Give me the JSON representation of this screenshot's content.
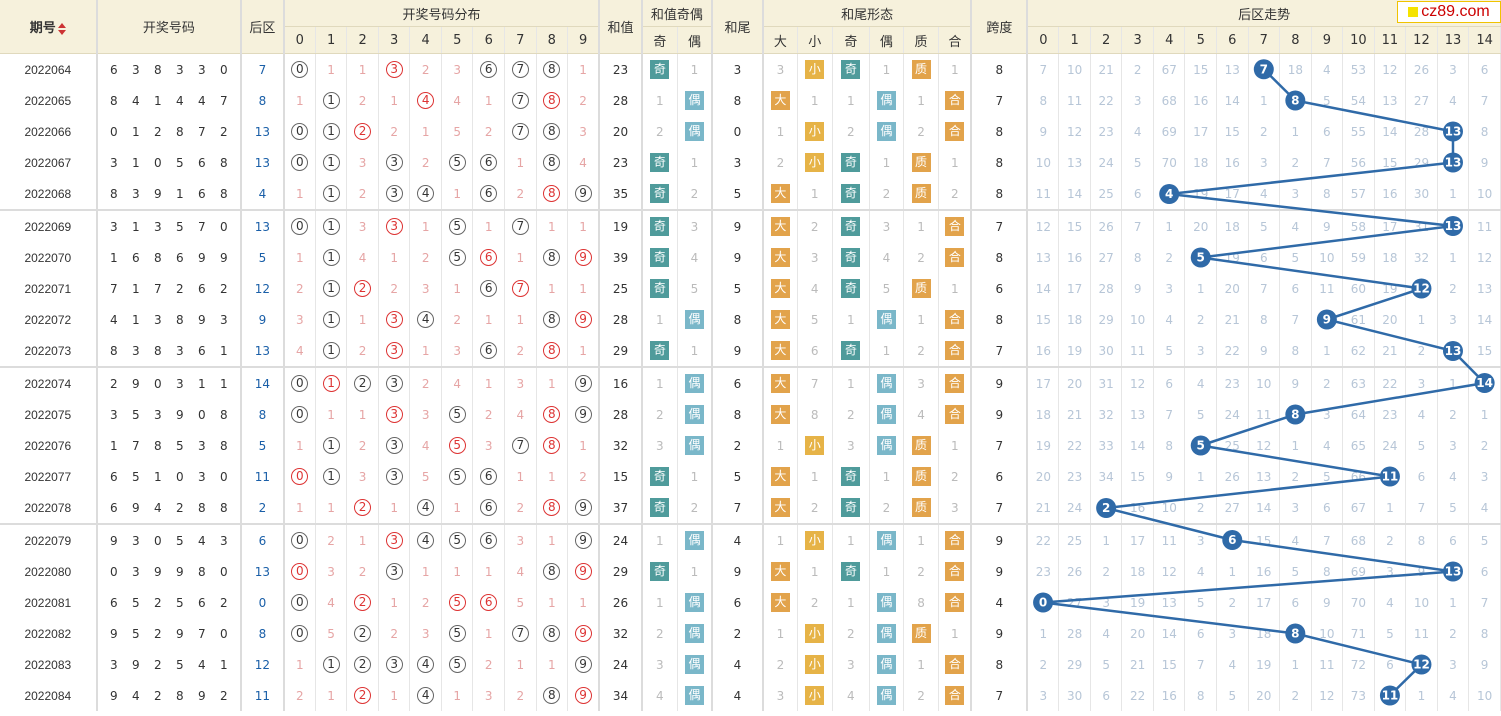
{
  "header": {
    "period": "期号",
    "draw_numbers": "开奖号码",
    "back": "后区",
    "distribution": "开奖号码分布",
    "sum": "和值",
    "sum_parity": "和值奇偶",
    "sum_tail": "和尾",
    "tail_shape": "和尾形态",
    "span": "跨度",
    "back_trend": "后区走势",
    "parity_odd": "奇",
    "parity_even": "偶",
    "big": "大",
    "small": "小",
    "odd": "奇",
    "even": "偶",
    "prime": "质",
    "composite": "合"
  },
  "logo": "cz89.com",
  "dist_cols": [
    "0",
    "1",
    "2",
    "3",
    "4",
    "5",
    "6",
    "7",
    "8",
    "9"
  ],
  "trend_cols": [
    "0",
    "1",
    "2",
    "3",
    "4",
    "5",
    "6",
    "7",
    "8",
    "9",
    "10",
    "11",
    "12",
    "13",
    "14"
  ],
  "rows": [
    {
      "period": "2022064",
      "nums": [
        "6",
        "3",
        "8",
        "3",
        "3",
        "0"
      ],
      "back": "7",
      "dist": [
        {
          "b": "0"
        },
        "1",
        "1",
        {
          "r": "3"
        },
        "2",
        "3",
        {
          "b": "6"
        },
        {
          "b": "7"
        },
        {
          "b": "8"
        },
        "1"
      ],
      "sum": "23",
      "sp": [
        "奇",
        "1"
      ],
      "tail": "3",
      "shape": [
        "3",
        "小",
        "奇",
        "1",
        "质",
        "1"
      ],
      "span": "8",
      "trend": [
        "7",
        "10",
        "21",
        "2",
        "67",
        "15",
        "13",
        "7",
        "18",
        "4",
        "53",
        "12",
        "26",
        "3",
        "6"
      ],
      "sel": 7
    },
    {
      "period": "2022065",
      "nums": [
        "8",
        "4",
        "1",
        "4",
        "4",
        "7"
      ],
      "back": "8",
      "dist": [
        "1",
        {
          "b": "1"
        },
        "2",
        "1",
        {
          "r": "4"
        },
        "4",
        "1",
        {
          "b": "7"
        },
        {
          "r": "8"
        },
        "2"
      ],
      "sum": "28",
      "sp": [
        "1",
        "偶"
      ],
      "tail": "8",
      "shape": [
        "大",
        "1",
        "1",
        "偶",
        "1",
        "合"
      ],
      "span": "7",
      "trend": [
        "8",
        "11",
        "22",
        "3",
        "68",
        "16",
        "14",
        "1",
        "8",
        "5",
        "54",
        "13",
        "27",
        "4",
        "7"
      ],
      "sel": 8
    },
    {
      "period": "2022066",
      "nums": [
        "0",
        "1",
        "2",
        "8",
        "7",
        "2"
      ],
      "back": "13",
      "dist": [
        {
          "b": "0"
        },
        {
          "b": "1"
        },
        {
          "r": "2"
        },
        "2",
        "1",
        "5",
        "2",
        {
          "b": "7"
        },
        {
          "b": "8"
        },
        "3"
      ],
      "sum": "20",
      "sp": [
        "2",
        "偶"
      ],
      "tail": "0",
      "shape": [
        "1",
        "小",
        "2",
        "偶",
        "2",
        "合"
      ],
      "span": "8",
      "trend": [
        "9",
        "12",
        "23",
        "4",
        "69",
        "17",
        "15",
        "2",
        "1",
        "6",
        "55",
        "14",
        "28",
        "13",
        "8"
      ],
      "sel": 13
    },
    {
      "period": "2022067",
      "nums": [
        "3",
        "1",
        "0",
        "5",
        "6",
        "8"
      ],
      "back": "13",
      "dist": [
        {
          "b": "0"
        },
        {
          "b": "1"
        },
        "3",
        {
          "b": "3"
        },
        "2",
        {
          "b": "5"
        },
        {
          "b": "6"
        },
        "1",
        {
          "b": "8"
        },
        "4"
      ],
      "sum": "23",
      "sp": [
        "奇",
        "1"
      ],
      "tail": "3",
      "shape": [
        "2",
        "小",
        "奇",
        "1",
        "质",
        "1"
      ],
      "span": "8",
      "trend": [
        "10",
        "13",
        "24",
        "5",
        "70",
        "18",
        "16",
        "3",
        "2",
        "7",
        "56",
        "15",
        "29",
        "13",
        "9"
      ],
      "sel": 13
    },
    {
      "period": "2022068",
      "nums": [
        "8",
        "3",
        "9",
        "1",
        "6",
        "8"
      ],
      "back": "4",
      "dist": [
        "1",
        {
          "b": "1"
        },
        "2",
        {
          "b": "3"
        },
        {
          "b": "4"
        },
        "1",
        {
          "b": "6"
        },
        "2",
        {
          "r": "8"
        },
        {
          "b": "9"
        }
      ],
      "sum": "35",
      "sp": [
        "奇",
        "2"
      ],
      "tail": "5",
      "shape": [
        "大",
        "1",
        "奇",
        "2",
        "质",
        "2"
      ],
      "span": "8",
      "trend": [
        "11",
        "14",
        "25",
        "6",
        "4",
        "19",
        "17",
        "4",
        "3",
        "8",
        "57",
        "16",
        "30",
        "1",
        "10"
      ],
      "sel": 4
    },
    {
      "period": "2022069",
      "nums": [
        "3",
        "1",
        "3",
        "5",
        "7",
        "0"
      ],
      "back": "13",
      "dist": [
        {
          "b": "0"
        },
        {
          "b": "1"
        },
        "3",
        {
          "r": "3"
        },
        "1",
        {
          "b": "5"
        },
        "1",
        {
          "b": "7"
        },
        "1",
        "1"
      ],
      "sum": "19",
      "sp": [
        "奇",
        "3"
      ],
      "tail": "9",
      "shape": [
        "大",
        "2",
        "奇",
        "3",
        "1",
        "合"
      ],
      "span": "7",
      "trend": [
        "12",
        "15",
        "26",
        "7",
        "1",
        "20",
        "18",
        "5",
        "4",
        "9",
        "58",
        "17",
        "31",
        "13",
        "11"
      ],
      "sel": 13,
      "sep": true
    },
    {
      "period": "2022070",
      "nums": [
        "1",
        "6",
        "8",
        "6",
        "9",
        "9"
      ],
      "back": "5",
      "dist": [
        "1",
        {
          "b": "1"
        },
        "4",
        "1",
        "2",
        {
          "b": "5"
        },
        {
          "r": "6"
        },
        "1",
        {
          "b": "8"
        },
        {
          "r": "9"
        }
      ],
      "sum": "39",
      "sp": [
        "奇",
        "4"
      ],
      "tail": "9",
      "shape": [
        "大",
        "3",
        "奇",
        "4",
        "2",
        "合"
      ],
      "span": "8",
      "trend": [
        "13",
        "16",
        "27",
        "8",
        "2",
        "5",
        "19",
        "6",
        "5",
        "10",
        "59",
        "18",
        "32",
        "1",
        "12"
      ],
      "sel": 5
    },
    {
      "period": "2022071",
      "nums": [
        "7",
        "1",
        "7",
        "2",
        "6",
        "2"
      ],
      "back": "12",
      "dist": [
        "2",
        {
          "b": "1"
        },
        {
          "r": "2"
        },
        "2",
        "3",
        "1",
        {
          "b": "6"
        },
        {
          "r": "7"
        },
        "1",
        "1"
      ],
      "sum": "25",
      "sp": [
        "奇",
        "5"
      ],
      "tail": "5",
      "shape": [
        "大",
        "4",
        "奇",
        "5",
        "质",
        "1"
      ],
      "span": "6",
      "trend": [
        "14",
        "17",
        "28",
        "9",
        "3",
        "1",
        "20",
        "7",
        "6",
        "11",
        "60",
        "19",
        "12",
        "2",
        "13"
      ],
      "sel": 12
    },
    {
      "period": "2022072",
      "nums": [
        "4",
        "1",
        "3",
        "8",
        "9",
        "3"
      ],
      "back": "9",
      "dist": [
        "3",
        {
          "b": "1"
        },
        "1",
        {
          "r": "3"
        },
        {
          "b": "4"
        },
        "2",
        "1",
        "1",
        {
          "b": "8"
        },
        {
          "r": "9"
        }
      ],
      "sum": "28",
      "sp": [
        "1",
        "偶"
      ],
      "tail": "8",
      "shape": [
        "大",
        "5",
        "1",
        "偶",
        "1",
        "合"
      ],
      "span": "8",
      "trend": [
        "15",
        "18",
        "29",
        "10",
        "4",
        "2",
        "21",
        "8",
        "7",
        "9",
        "61",
        "20",
        "1",
        "3",
        "14"
      ],
      "sel": 9
    },
    {
      "period": "2022073",
      "nums": [
        "8",
        "3",
        "8",
        "3",
        "6",
        "1"
      ],
      "back": "13",
      "dist": [
        "4",
        {
          "b": "1"
        },
        "2",
        {
          "r": "3"
        },
        "1",
        "3",
        {
          "b": "6"
        },
        "2",
        {
          "r": "8"
        },
        "1"
      ],
      "sum": "29",
      "sp": [
        "奇",
        "1"
      ],
      "tail": "9",
      "shape": [
        "大",
        "6",
        "奇",
        "1",
        "2",
        "合"
      ],
      "span": "7",
      "trend": [
        "16",
        "19",
        "30",
        "11",
        "5",
        "3",
        "22",
        "9",
        "8",
        "1",
        "62",
        "21",
        "2",
        "13",
        "15"
      ],
      "sel": 13
    },
    {
      "period": "2022074",
      "nums": [
        "2",
        "9",
        "0",
        "3",
        "1",
        "1"
      ],
      "back": "14",
      "dist": [
        {
          "b": "0"
        },
        {
          "r": "1"
        },
        {
          "b": "2"
        },
        {
          "b": "3"
        },
        "2",
        "4",
        "1",
        "3",
        "1",
        {
          "b": "9"
        }
      ],
      "sum": "16",
      "sp": [
        "1",
        "偶"
      ],
      "tail": "6",
      "shape": [
        "大",
        "7",
        "1",
        "偶",
        "3",
        "合"
      ],
      "span": "9",
      "trend": [
        "17",
        "20",
        "31",
        "12",
        "6",
        "4",
        "23",
        "10",
        "9",
        "2",
        "63",
        "22",
        "3",
        "1",
        "14"
      ],
      "sel": 14,
      "sep": true
    },
    {
      "period": "2022075",
      "nums": [
        "3",
        "5",
        "3",
        "9",
        "0",
        "8"
      ],
      "back": "8",
      "dist": [
        {
          "b": "0"
        },
        "1",
        "1",
        {
          "r": "3"
        },
        "3",
        {
          "b": "5"
        },
        "2",
        "4",
        {
          "r": "8"
        },
        {
          "b": "9"
        }
      ],
      "sum": "28",
      "sp": [
        "2",
        "偶"
      ],
      "tail": "8",
      "shape": [
        "大",
        "8",
        "2",
        "偶",
        "4",
        "合"
      ],
      "span": "9",
      "trend": [
        "18",
        "21",
        "32",
        "13",
        "7",
        "5",
        "24",
        "11",
        "8",
        "3",
        "64",
        "23",
        "4",
        "2",
        "1"
      ],
      "sel": 8
    },
    {
      "period": "2022076",
      "nums": [
        "1",
        "7",
        "8",
        "5",
        "3",
        "8"
      ],
      "back": "5",
      "dist": [
        "1",
        {
          "b": "1"
        },
        "2",
        {
          "b": "3"
        },
        "4",
        {
          "r": "5"
        },
        "3",
        {
          "b": "7"
        },
        {
          "r": "8"
        },
        "1"
      ],
      "sum": "32",
      "sp": [
        "3",
        "偶"
      ],
      "tail": "2",
      "shape": [
        "1",
        "小",
        "3",
        "偶",
        "质",
        "1"
      ],
      "span": "7",
      "trend": [
        "19",
        "22",
        "33",
        "14",
        "8",
        "5",
        "25",
        "12",
        "1",
        "4",
        "65",
        "24",
        "5",
        "3",
        "2"
      ],
      "sel": 5
    },
    {
      "period": "2022077",
      "nums": [
        "6",
        "5",
        "1",
        "0",
        "3",
        "0"
      ],
      "back": "11",
      "dist": [
        {
          "r": "0"
        },
        {
          "b": "1"
        },
        "3",
        {
          "b": "3"
        },
        "5",
        {
          "b": "5"
        },
        {
          "b": "6"
        },
        "1",
        "1",
        "2"
      ],
      "sum": "15",
      "sp": [
        "奇",
        "1"
      ],
      "tail": "5",
      "shape": [
        "大",
        "1",
        "奇",
        "1",
        "质",
        "2"
      ],
      "span": "6",
      "trend": [
        "20",
        "23",
        "34",
        "15",
        "9",
        "1",
        "26",
        "13",
        "2",
        "5",
        "66",
        "11",
        "6",
        "4",
        "3"
      ],
      "sel": 11
    },
    {
      "period": "2022078",
      "nums": [
        "6",
        "9",
        "4",
        "2",
        "8",
        "8"
      ],
      "back": "2",
      "dist": [
        "1",
        "1",
        {
          "r": "2"
        },
        "1",
        {
          "b": "4"
        },
        "1",
        {
          "b": "6"
        },
        "2",
        {
          "r": "8"
        },
        {
          "b": "9"
        }
      ],
      "sum": "37",
      "sp": [
        "奇",
        "2"
      ],
      "tail": "7",
      "shape": [
        "大",
        "2",
        "奇",
        "2",
        "质",
        "3"
      ],
      "span": "7",
      "trend": [
        "21",
        "24",
        "2",
        "16",
        "10",
        "2",
        "27",
        "14",
        "3",
        "6",
        "67",
        "1",
        "7",
        "5",
        "4"
      ],
      "sel": 2
    },
    {
      "period": "2022079",
      "nums": [
        "9",
        "3",
        "0",
        "5",
        "4",
        "3"
      ],
      "back": "6",
      "dist": [
        {
          "b": "0"
        },
        "2",
        "1",
        {
          "r": "3"
        },
        {
          "b": "4"
        },
        {
          "b": "5"
        },
        {
          "b": "6"
        },
        "3",
        "1",
        {
          "b": "9"
        }
      ],
      "sum": "24",
      "sp": [
        "1",
        "偶"
      ],
      "tail": "4",
      "shape": [
        "1",
        "小",
        "1",
        "偶",
        "1",
        "合"
      ],
      "span": "9",
      "trend": [
        "22",
        "25",
        "1",
        "17",
        "11",
        "3",
        "6",
        "15",
        "4",
        "7",
        "68",
        "2",
        "8",
        "6",
        "5"
      ],
      "sel": 6,
      "sep": true
    },
    {
      "period": "2022080",
      "nums": [
        "0",
        "3",
        "9",
        "9",
        "8",
        "0"
      ],
      "back": "13",
      "dist": [
        {
          "r": "0"
        },
        "3",
        "2",
        {
          "b": "3"
        },
        "1",
        "1",
        "1",
        "4",
        {
          "b": "8"
        },
        {
          "r": "9"
        }
      ],
      "sum": "29",
      "sp": [
        "奇",
        "1"
      ],
      "tail": "9",
      "shape": [
        "大",
        "1",
        "奇",
        "1",
        "2",
        "合"
      ],
      "span": "9",
      "trend": [
        "23",
        "26",
        "2",
        "18",
        "12",
        "4",
        "1",
        "16",
        "5",
        "8",
        "69",
        "3",
        "9",
        "13",
        "6"
      ],
      "sel": 13
    },
    {
      "period": "2022081",
      "nums": [
        "6",
        "5",
        "2",
        "5",
        "6",
        "2"
      ],
      "back": "0",
      "dist": [
        {
          "b": "0"
        },
        "4",
        {
          "r": "2"
        },
        "1",
        "2",
        {
          "r": "5"
        },
        {
          "r": "6"
        },
        "5",
        "1",
        "1"
      ],
      "sum": "26",
      "sp": [
        "1",
        "偶"
      ],
      "tail": "6",
      "shape": [
        "大",
        "2",
        "1",
        "偶",
        "8",
        "合"
      ],
      "span": "4",
      "trend": [
        "0",
        "27",
        "3",
        "19",
        "13",
        "5",
        "2",
        "17",
        "6",
        "9",
        "70",
        "4",
        "10",
        "1",
        "7"
      ],
      "sel": 0
    },
    {
      "period": "2022082",
      "nums": [
        "9",
        "5",
        "2",
        "9",
        "7",
        "0"
      ],
      "back": "8",
      "dist": [
        {
          "b": "0"
        },
        "5",
        {
          "b": "2"
        },
        "2",
        "3",
        {
          "b": "5"
        },
        "1",
        {
          "b": "7"
        },
        {
          "b": "8"
        },
        {
          "r": "9"
        }
      ],
      "sum": "32",
      "sp": [
        "2",
        "偶"
      ],
      "tail": "2",
      "shape": [
        "1",
        "小",
        "2",
        "偶",
        "质",
        "1"
      ],
      "span": "9",
      "trend": [
        "1",
        "28",
        "4",
        "20",
        "14",
        "6",
        "3",
        "18",
        "8",
        "10",
        "71",
        "5",
        "11",
        "2",
        "8"
      ],
      "sel": 8
    },
    {
      "period": "2022083",
      "nums": [
        "3",
        "9",
        "2",
        "5",
        "4",
        "1"
      ],
      "back": "12",
      "dist": [
        "1",
        {
          "b": "1"
        },
        {
          "b": "2"
        },
        {
          "b": "3"
        },
        {
          "b": "4"
        },
        {
          "b": "5"
        },
        "2",
        "1",
        "1",
        {
          "b": "9"
        }
      ],
      "sum": "24",
      "sp": [
        "3",
        "偶"
      ],
      "tail": "4",
      "shape": [
        "2",
        "小",
        "3",
        "偶",
        "1",
        "合"
      ],
      "span": "8",
      "trend": [
        "2",
        "29",
        "5",
        "21",
        "15",
        "7",
        "4",
        "19",
        "1",
        "11",
        "72",
        "6",
        "12",
        "3",
        "9"
      ],
      "sel": 12
    },
    {
      "period": "2022084",
      "nums": [
        "9",
        "4",
        "2",
        "8",
        "9",
        "2"
      ],
      "back": "11",
      "dist": [
        "2",
        "1",
        {
          "r": "2"
        },
        "1",
        {
          "b": "4"
        },
        "1",
        "3",
        "2",
        {
          "b": "8"
        },
        {
          "r": "9"
        }
      ],
      "sum": "34",
      "sp": [
        "4",
        "偶"
      ],
      "tail": "4",
      "shape": [
        "3",
        "小",
        "4",
        "偶",
        "2",
        "合"
      ],
      "span": "7",
      "trend": [
        "3",
        "30",
        "6",
        "22",
        "16",
        "8",
        "5",
        "20",
        "2",
        "12",
        "73",
        "11",
        "1",
        "4",
        "10"
      ],
      "sel": 11
    }
  ],
  "colors": {
    "line": "#2f6aa8",
    "ball": "#2f6aa8",
    "header_bg": "#f6f1dc"
  }
}
